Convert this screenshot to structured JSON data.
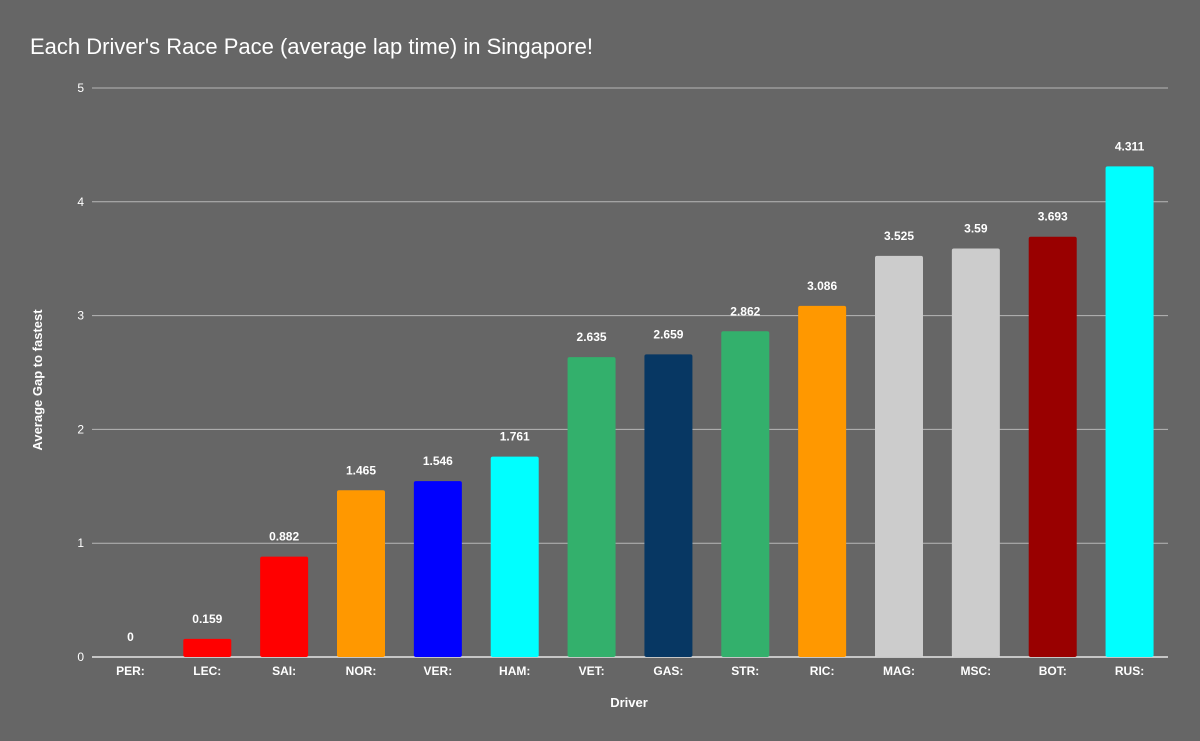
{
  "chart_data": {
    "type": "bar",
    "title": "Each Driver's Race Pace (average lap time) in Singapore!",
    "xlabel": "Driver",
    "ylabel": "Average Gap to fastest",
    "ylim": [
      0,
      5
    ],
    "yticks": [
      0,
      1,
      2,
      3,
      4,
      5
    ],
    "grid": true,
    "legend": "none",
    "categories": [
      "PER:",
      "LEC:",
      "SAI:",
      "NOR:",
      "VER:",
      "HAM:",
      "VET:",
      "GAS:",
      "STR:",
      "RIC:",
      "MAG:",
      "MSC:",
      "BOT:",
      "RUS:"
    ],
    "values": [
      0,
      0.159,
      0.882,
      1.465,
      1.546,
      1.761,
      2.635,
      2.659,
      2.862,
      3.086,
      3.525,
      3.59,
      3.693,
      4.311
    ],
    "data_labels": [
      "0",
      "0.159",
      "0.882",
      "1.465",
      "1.546",
      "1.761",
      "2.635",
      "2.659",
      "2.862",
      "3.086",
      "3.525",
      "3.59",
      "3.693",
      "4.311"
    ],
    "colors": [
      "#1e41ff",
      "#ff0000",
      "#ff0000",
      "#ff9800",
      "#0000ff",
      "#00ffff",
      "#33b06c",
      "#073763",
      "#33b06c",
      "#ff9800",
      "#cccccc",
      "#cccccc",
      "#990000",
      "#00ffff"
    ]
  },
  "colors": {
    "background": "#666666",
    "gridline": "#b7b7b7",
    "text": "#ffffff"
  }
}
